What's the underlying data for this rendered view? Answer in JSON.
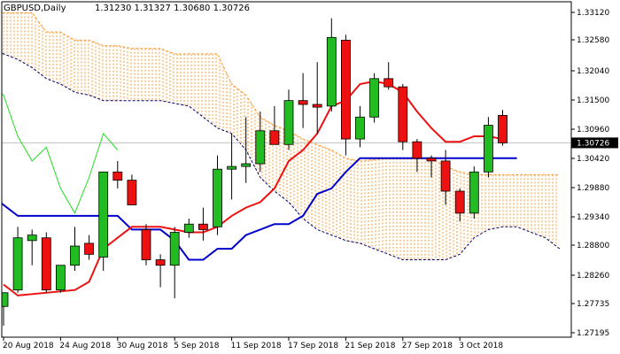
{
  "header": {
    "symbol": "GBPUSD,Daily",
    "ohlc": "1.31230 1.31327 1.30680 1.30726"
  },
  "price_badge": "1.30726",
  "colors": {
    "bull": "#22bb22",
    "bear": "#ee1111",
    "candle_outline": "#000000",
    "tenkan": "#ee1111",
    "kijun": "#0000cc",
    "chikou": "#22dd22",
    "cloud": "#ff9a33",
    "cloud_edge": "#000066",
    "current_line": "#c0c0c0",
    "badge_bg": "#000000",
    "badge_text": "#ffffff"
  },
  "chart_data": {
    "type": "candlestick",
    "title": "GBPUSD,Daily",
    "ylim": [
      1.2719,
      1.333
    ],
    "y_ticks": [
      "1.33120",
      "1.32580",
      "1.32040",
      "1.31500",
      "1.30960",
      "1.30420",
      "1.29880",
      "1.29340",
      "1.28800",
      "1.28260",
      "1.27735",
      "1.27195"
    ],
    "x_labels": [
      {
        "label": "20 Aug 2018",
        "index": 0
      },
      {
        "label": "24 Aug 2018",
        "index": 4
      },
      {
        "label": "30 Aug 2018",
        "index": 8
      },
      {
        "label": "5 Sep 2018",
        "index": 12
      },
      {
        "label": "11 Sep 2018",
        "index": 16
      },
      {
        "label": "17 Sep 2018",
        "index": 20
      },
      {
        "label": "21 Sep 2018",
        "index": 24
      },
      {
        "label": "27 Sep 2018",
        "index": 28
      },
      {
        "label": "3 Oct 2018",
        "index": 32
      }
    ],
    "candles": [
      {
        "o": 1.2775,
        "h": 1.28,
        "l": 1.274,
        "c": 1.28
      },
      {
        "o": 1.2805,
        "h": 1.292,
        "l": 1.28,
        "c": 1.29
      },
      {
        "o": 1.2895,
        "h": 1.2915,
        "l": 1.285,
        "c": 1.2905
      },
      {
        "o": 1.29,
        "h": 1.291,
        "l": 1.28,
        "c": 1.2805
      },
      {
        "o": 1.2805,
        "h": 1.285,
        "l": 1.28,
        "c": 1.285
      },
      {
        "o": 1.285,
        "h": 1.292,
        "l": 1.284,
        "c": 1.2885
      },
      {
        "o": 1.289,
        "h": 1.2905,
        "l": 1.286,
        "c": 1.287
      },
      {
        "o": 1.2865,
        "h": 1.302,
        "l": 1.284,
        "c": 1.302
      },
      {
        "o": 1.302,
        "h": 1.304,
        "l": 1.299,
        "c": 1.3005
      },
      {
        "o": 1.3005,
        "h": 1.3015,
        "l": 1.296,
        "c": 1.296
      },
      {
        "o": 1.2915,
        "h": 1.2925,
        "l": 1.285,
        "c": 1.286
      },
      {
        "o": 1.286,
        "h": 1.287,
        "l": 1.281,
        "c": 1.285
      },
      {
        "o": 1.285,
        "h": 1.292,
        "l": 1.279,
        "c": 1.291
      },
      {
        "o": 1.291,
        "h": 1.2935,
        "l": 1.29,
        "c": 1.2925
      },
      {
        "o": 1.2925,
        "h": 1.2955,
        "l": 1.2895,
        "c": 1.2915
      },
      {
        "o": 1.292,
        "h": 1.305,
        "l": 1.2905,
        "c": 1.3025
      },
      {
        "o": 1.3025,
        "h": 1.309,
        "l": 1.297,
        "c": 1.303
      },
      {
        "o": 1.303,
        "h": 1.312,
        "l": 1.3,
        "c": 1.3035
      },
      {
        "o": 1.3035,
        "h": 1.313,
        "l": 1.302,
        "c": 1.3095
      },
      {
        "o": 1.3095,
        "h": 1.314,
        "l": 1.307,
        "c": 1.307
      },
      {
        "o": 1.307,
        "h": 1.317,
        "l": 1.306,
        "c": 1.315
      },
      {
        "o": 1.315,
        "h": 1.32,
        "l": 1.31,
        "c": 1.3143
      },
      {
        "o": 1.3143,
        "h": 1.322,
        "l": 1.309,
        "c": 1.3138
      },
      {
        "o": 1.314,
        "h": 1.33,
        "l": 1.313,
        "c": 1.3265
      },
      {
        "o": 1.326,
        "h": 1.327,
        "l": 1.305,
        "c": 1.308
      },
      {
        "o": 1.308,
        "h": 1.314,
        "l": 1.3065,
        "c": 1.312
      },
      {
        "o": 1.312,
        "h": 1.32,
        "l": 1.311,
        "c": 1.319
      },
      {
        "o": 1.319,
        "h": 1.322,
        "l": 1.317,
        "c": 1.3175
      },
      {
        "o": 1.3175,
        "h": 1.318,
        "l": 1.306,
        "c": 1.3075
      },
      {
        "o": 1.3075,
        "h": 1.308,
        "l": 1.302,
        "c": 1.3045
      },
      {
        "o": 1.3045,
        "h": 1.305,
        "l": 1.301,
        "c": 1.304
      },
      {
        "o": 1.304,
        "h": 1.306,
        "l": 1.296,
        "c": 1.2985
      },
      {
        "o": 1.2985,
        "h": 1.299,
        "l": 1.293,
        "c": 1.2945
      },
      {
        "o": 1.2945,
        "h": 1.303,
        "l": 1.2935,
        "c": 1.302
      },
      {
        "o": 1.302,
        "h": 1.312,
        "l": 1.301,
        "c": 1.3105
      },
      {
        "o": 1.3123,
        "h": 1.3133,
        "l": 1.3068,
        "c": 1.3073
      }
    ],
    "tenkan": [
      {
        "i": 0,
        "v": 1.2815
      },
      {
        "i": 1,
        "v": 1.2795
      },
      {
        "i": 5,
        "v": 1.2805
      },
      {
        "i": 6,
        "v": 1.282
      },
      {
        "i": 7,
        "v": 1.288
      },
      {
        "i": 9,
        "v": 1.292
      },
      {
        "i": 10,
        "v": 1.292
      },
      {
        "i": 11,
        "v": 1.292
      },
      {
        "i": 12,
        "v": 1.2915
      },
      {
        "i": 13,
        "v": 1.291
      },
      {
        "i": 14,
        "v": 1.291
      },
      {
        "i": 15,
        "v": 1.292
      },
      {
        "i": 16,
        "v": 1.294
      },
      {
        "i": 17,
        "v": 1.2955
      },
      {
        "i": 18,
        "v": 1.2965
      },
      {
        "i": 19,
        "v": 1.299
      },
      {
        "i": 20,
        "v": 1.304
      },
      {
        "i": 21,
        "v": 1.306
      },
      {
        "i": 22,
        "v": 1.309
      },
      {
        "i": 23,
        "v": 1.314
      },
      {
        "i": 24,
        "v": 1.315
      },
      {
        "i": 25,
        "v": 1.318
      },
      {
        "i": 26,
        "v": 1.3185
      },
      {
        "i": 27,
        "v": 1.318
      },
      {
        "i": 28,
        "v": 1.3165
      },
      {
        "i": 29,
        "v": 1.313
      },
      {
        "i": 30,
        "v": 1.31
      },
      {
        "i": 31,
        "v": 1.3075
      },
      {
        "i": 32,
        "v": 1.3075
      },
      {
        "i": 33,
        "v": 1.3085
      },
      {
        "i": 34,
        "v": 1.3085
      },
      {
        "i": 35,
        "v": 1.308
      }
    ],
    "kijun": [
      {
        "i": -1,
        "v": 1.298
      },
      {
        "i": 1,
        "v": 1.294
      },
      {
        "i": 2,
        "v": 1.294
      },
      {
        "i": 8,
        "v": 1.294
      },
      {
        "i": 9,
        "v": 1.2915
      },
      {
        "i": 11,
        "v": 1.2915
      },
      {
        "i": 12,
        "v": 1.2895
      },
      {
        "i": 13,
        "v": 1.286
      },
      {
        "i": 14,
        "v": 1.286
      },
      {
        "i": 15,
        "v": 1.288
      },
      {
        "i": 16,
        "v": 1.288
      },
      {
        "i": 17,
        "v": 1.2905
      },
      {
        "i": 18,
        "v": 1.2915
      },
      {
        "i": 19,
        "v": 1.2925
      },
      {
        "i": 20,
        "v": 1.2925
      },
      {
        "i": 21,
        "v": 1.294
      },
      {
        "i": 22,
        "v": 1.298
      },
      {
        "i": 23,
        "v": 1.299
      },
      {
        "i": 24,
        "v": 1.302
      },
      {
        "i": 25,
        "v": 1.3045
      },
      {
        "i": 35,
        "v": 1.3045
      },
      {
        "i": 36,
        "v": 1.3045
      }
    ],
    "chikou": [
      {
        "i": -1,
        "v": 1.3175
      },
      {
        "i": 0,
        "v": 1.316
      },
      {
        "i": 1,
        "v": 1.3085
      },
      {
        "i": 2,
        "v": 1.304
      },
      {
        "i": 3,
        "v": 1.3065
      },
      {
        "i": 4,
        "v": 1.299
      },
      {
        "i": 5,
        "v": 1.2945
      },
      {
        "i": 6,
        "v": 1.301
      },
      {
        "i": 7,
        "v": 1.309
      },
      {
        "i": 8,
        "v": 1.306
      }
    ],
    "span_a": [
      {
        "i": -1,
        "v": 1.331
      },
      {
        "i": 2,
        "v": 1.331
      },
      {
        "i": 3,
        "v": 1.3275
      },
      {
        "i": 4,
        "v": 1.3275
      },
      {
        "i": 5,
        "v": 1.326
      },
      {
        "i": 6,
        "v": 1.326
      },
      {
        "i": 7,
        "v": 1.325
      },
      {
        "i": 8,
        "v": 1.325
      },
      {
        "i": 9,
        "v": 1.3245
      },
      {
        "i": 11,
        "v": 1.3245
      },
      {
        "i": 12,
        "v": 1.3235
      },
      {
        "i": 15,
        "v": 1.3235
      },
      {
        "i": 16,
        "v": 1.318
      },
      {
        "i": 17,
        "v": 1.316
      },
      {
        "i": 18,
        "v": 1.312
      },
      {
        "i": 19,
        "v": 1.3105
      },
      {
        "i": 20,
        "v": 1.3095
      },
      {
        "i": 21,
        "v": 1.308
      },
      {
        "i": 22,
        "v": 1.307
      },
      {
        "i": 23,
        "v": 1.306
      },
      {
        "i": 24,
        "v": 1.3045
      },
      {
        "i": 25,
        "v": 1.304
      },
      {
        "i": 27,
        "v": 1.3045
      },
      {
        "i": 30,
        "v": 1.3045
      },
      {
        "i": 31,
        "v": 1.303
      },
      {
        "i": 32,
        "v": 1.302
      },
      {
        "i": 33,
        "v": 1.3015
      },
      {
        "i": 39,
        "v": 1.3015
      }
    ],
    "span_b": [
      {
        "i": -1,
        "v": 1.324
      },
      {
        "i": 0,
        "v": 1.3235
      },
      {
        "i": 1,
        "v": 1.3225
      },
      {
        "i": 2,
        "v": 1.321
      },
      {
        "i": 3,
        "v": 1.319
      },
      {
        "i": 4,
        "v": 1.318
      },
      {
        "i": 5,
        "v": 1.3165
      },
      {
        "i": 6,
        "v": 1.316
      },
      {
        "i": 7,
        "v": 1.315
      },
      {
        "i": 11,
        "v": 1.315
      },
      {
        "i": 12,
        "v": 1.3145
      },
      {
        "i": 13,
        "v": 1.314
      },
      {
        "i": 14,
        "v": 1.312
      },
      {
        "i": 15,
        "v": 1.31
      },
      {
        "i": 16,
        "v": 1.309
      },
      {
        "i": 17,
        "v": 1.306
      },
      {
        "i": 18,
        "v": 1.301
      },
      {
        "i": 19,
        "v": 1.2985
      },
      {
        "i": 20,
        "v": 1.2965
      },
      {
        "i": 21,
        "v": 1.2935
      },
      {
        "i": 22,
        "v": 1.2915
      },
      {
        "i": 23,
        "v": 1.2905
      },
      {
        "i": 24,
        "v": 1.2895
      },
      {
        "i": 25,
        "v": 1.289
      },
      {
        "i": 26,
        "v": 1.288
      },
      {
        "i": 27,
        "v": 1.287
      },
      {
        "i": 28,
        "v": 1.286
      },
      {
        "i": 29,
        "v": 1.286
      },
      {
        "i": 31,
        "v": 1.286
      },
      {
        "i": 32,
        "v": 1.287
      },
      {
        "i": 33,
        "v": 1.29
      },
      {
        "i": 34,
        "v": 1.2915
      },
      {
        "i": 35,
        "v": 1.292
      },
      {
        "i": 36,
        "v": 1.292
      },
      {
        "i": 37,
        "v": 1.291
      },
      {
        "i": 38,
        "v": 1.29
      },
      {
        "i": 39,
        "v": 1.288
      }
    ]
  }
}
